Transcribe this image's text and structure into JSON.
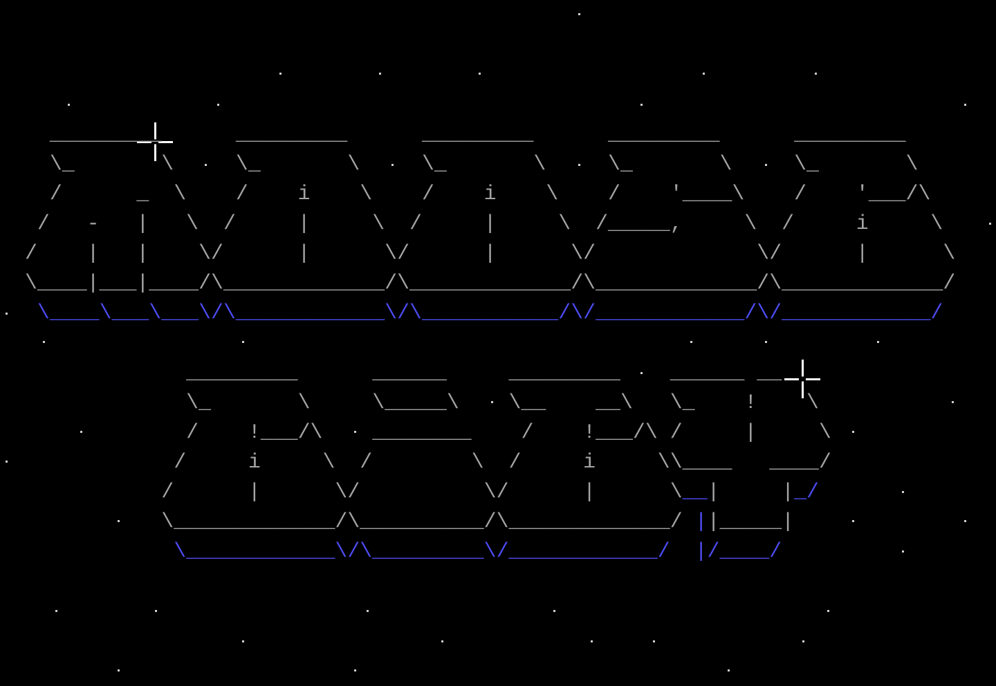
{
  "colors": {
    "gray": "#a4a4a4",
    "blue": "#4c4cf2",
    "star": "#ffffff",
    "background": "#000000"
  },
  "ascii_art": {
    "blocks": [
      {
        "rows": [
          [
            [
              "  _________      _________      _________      _________      _________",
              "gray"
            ]
          ],
          [
            [
              "  \\_       \\     \\_       \\     \\_       \\     \\_       \\     \\_       \\",
              "gray"
            ]
          ],
          [
            [
              "  /      _  \\    /    i    \\    /    i    \\    /    '____\\    /    '___/\\",
              "gray"
            ]
          ],
          [
            [
              " /   -   |   \\  /     |     \\  /     |     \\  /_____,     \\  /     i     \\",
              "gray"
            ]
          ],
          [
            [
              "/    |   |    \\/      |      \\/      |      \\/             \\/      |      \\",
              "gray"
            ]
          ],
          [
            [
              "\\____|___|____/\\_____________/\\_____________/\\_____________/\\_____________/",
              "gray"
            ]
          ],
          [
            [
              " \\____\\___\\___\\/\\____________\\/\\___________/\\/____________/\\/____________/",
              "blue"
            ]
          ]
        ]
      },
      {
        "rows": [
          [
            [
              "             _________      ______     _________    ______ __",
              "gray"
            ]
          ],
          [
            [
              "             \\_       \\     \\_____\\    \\__    __\\   \\_    !    \\",
              "gray"
            ]
          ],
          [
            [
              "             /    !___/\\    ________    /    !___/\\ /     |     \\",
              "gray"
            ]
          ],
          [
            [
              "            /     i     \\  /        \\  /     i     \\\\____   ____/",
              "gray"
            ]
          ],
          [
            [
              "           /      |      \\/          \\/      |      \\",
              "gray"
            ],
            [
              "__",
              "blue"
            ],
            [
              "|     |",
              "gray"
            ],
            [
              "_/",
              "blue"
            ]
          ],
          [
            [
              "           \\_____________/\\__________/\\_____________/ ",
              "gray"
            ],
            [
              "|",
              "blue"
            ],
            [
              "|_____|",
              "gray"
            ]
          ],
          [
            [
              "            \\____________\\/\\_________\\/____________/  |/____/",
              "blue"
            ]
          ]
        ]
      }
    ]
  }
}
